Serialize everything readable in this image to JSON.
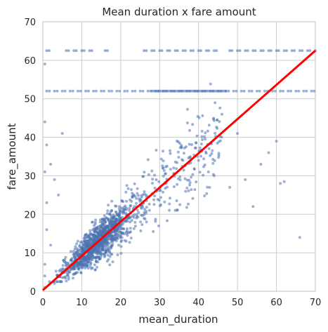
{
  "chart_data": {
    "type": "scatter",
    "title": "Mean duration x fare amount",
    "xlabel": "mean_duration",
    "ylabel": "fare_amount",
    "xlim": [
      0,
      70
    ],
    "ylim": [
      0,
      70
    ],
    "xticks": [
      "0",
      "10",
      "20",
      "30",
      "40",
      "50",
      "60",
      "70"
    ],
    "yticks": [
      "0",
      "10",
      "20",
      "30",
      "40",
      "50",
      "60",
      "70"
    ],
    "grid": true,
    "point_color": "#4c72b0",
    "line_color": "#ff0000",
    "regression_line": {
      "x": [
        0,
        70
      ],
      "y": [
        0.3,
        62.5
      ]
    },
    "points": {
      "band_62_5_x": [
        1,
        6,
        8,
        10,
        12,
        16,
        26,
        28,
        30,
        32,
        34,
        36,
        38,
        40,
        42,
        44,
        48,
        50,
        52,
        54,
        56,
        58,
        60,
        62,
        64,
        66,
        68,
        70
      ],
      "band_62_5_y": 62.5,
      "band_52_x": [
        1,
        3,
        5,
        7,
        9,
        11,
        13,
        15,
        17,
        19,
        21,
        23,
        25,
        27,
        29,
        31,
        33,
        35,
        37,
        39,
        41,
        43,
        45,
        47,
        49,
        51,
        53,
        55,
        57,
        59,
        61,
        63,
        65,
        67,
        69
      ],
      "band_52_y": 52,
      "outliers": [
        [
          34,
          21
        ],
        [
          36,
          34
        ],
        [
          40,
          34
        ],
        [
          44,
          30
        ],
        [
          48,
          27
        ],
        [
          52,
          29
        ],
        [
          50,
          41
        ],
        [
          46,
          46
        ],
        [
          56,
          33
        ],
        [
          61,
          28
        ],
        [
          62,
          28.5
        ],
        [
          66,
          14
        ],
        [
          58,
          36
        ],
        [
          60,
          39
        ],
        [
          54,
          22
        ],
        [
          0.5,
          1
        ],
        [
          0.5,
          4
        ],
        [
          1,
          16
        ],
        [
          1,
          23
        ],
        [
          0.5,
          7
        ],
        [
          2,
          12
        ],
        [
          3,
          2
        ],
        [
          0.5,
          31
        ],
        [
          1,
          38
        ],
        [
          0.5,
          59
        ],
        [
          0.5,
          44
        ],
        [
          5,
          41
        ],
        [
          4,
          25
        ],
        [
          3,
          29
        ],
        [
          2,
          33
        ]
      ]
    }
  }
}
